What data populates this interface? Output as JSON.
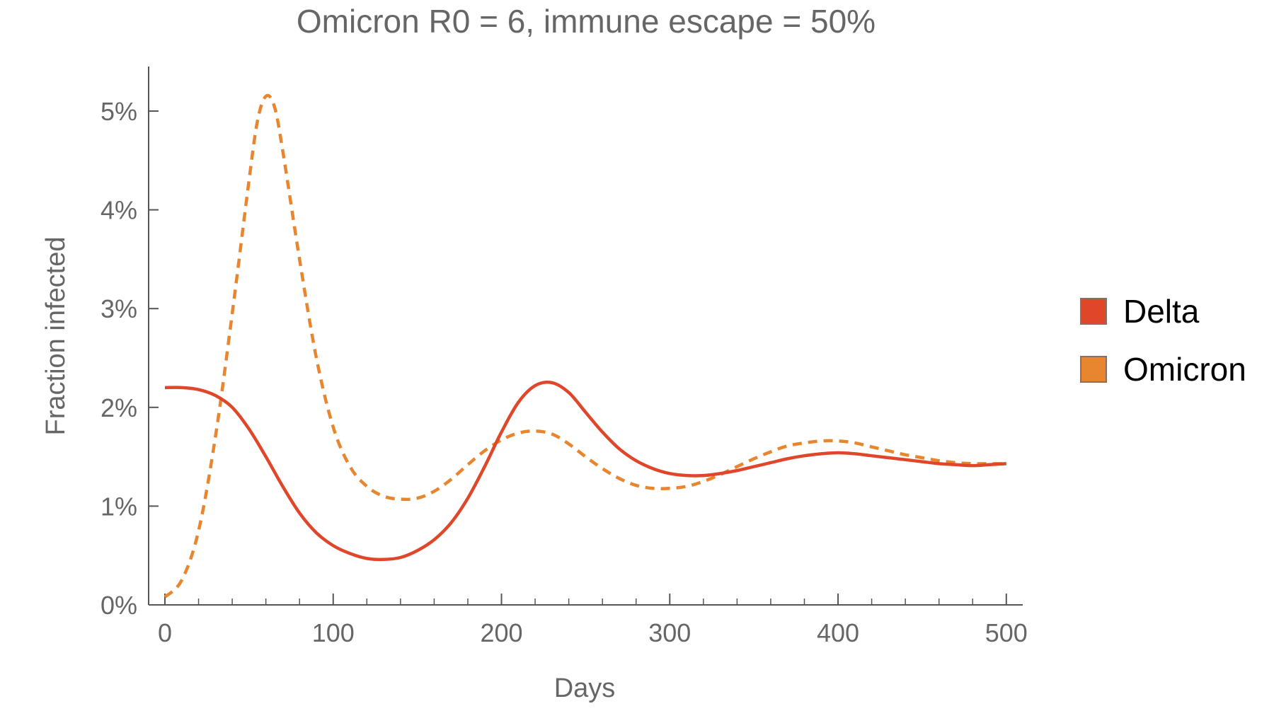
{
  "chart_data": {
    "type": "line",
    "title": "Omicron R0 = 6, immune escape = 50%",
    "xlabel": "Days",
    "ylabel": "Fraction infected",
    "xlim": [
      -5,
      510
    ],
    "ylim": [
      0,
      5.5
    ],
    "x_ticks": [
      {
        "value": 0,
        "label": "0"
      },
      {
        "value": 100,
        "label": "100"
      },
      {
        "value": 200,
        "label": "200"
      },
      {
        "value": 300,
        "label": "300"
      },
      {
        "value": 400,
        "label": "400"
      },
      {
        "value": 500,
        "label": "500"
      }
    ],
    "x_minor_ticks": [
      20,
      40,
      60,
      80,
      120,
      140,
      160,
      180,
      220,
      240,
      260,
      280,
      320,
      340,
      360,
      380,
      420,
      440,
      460,
      480
    ],
    "y_ticks": [
      {
        "value": 0,
        "label": "0%"
      },
      {
        "value": 1,
        "label": "1%"
      },
      {
        "value": 2,
        "label": "2%"
      },
      {
        "value": 3,
        "label": "3%"
      },
      {
        "value": 4,
        "label": "4%"
      },
      {
        "value": 5,
        "label": "5%"
      }
    ],
    "grid": false,
    "legend_position": "right",
    "series": [
      {
        "name": "Delta",
        "color": "#e0462a",
        "dash": "solid",
        "x": [
          0,
          10,
          20,
          30,
          40,
          50,
          60,
          70,
          80,
          90,
          100,
          110,
          120,
          130,
          140,
          150,
          160,
          170,
          180,
          190,
          200,
          210,
          220,
          230,
          240,
          250,
          260,
          270,
          280,
          290,
          300,
          310,
          320,
          330,
          340,
          350,
          360,
          370,
          380,
          390,
          400,
          410,
          420,
          430,
          440,
          450,
          460,
          470,
          480,
          490,
          500
        ],
        "y": [
          2.2,
          2.2,
          2.18,
          2.12,
          2.0,
          1.78,
          1.5,
          1.2,
          0.93,
          0.73,
          0.6,
          0.52,
          0.47,
          0.46,
          0.48,
          0.55,
          0.66,
          0.83,
          1.08,
          1.4,
          1.75,
          2.05,
          2.22,
          2.25,
          2.15,
          1.95,
          1.75,
          1.58,
          1.46,
          1.38,
          1.33,
          1.31,
          1.31,
          1.33,
          1.36,
          1.4,
          1.44,
          1.48,
          1.51,
          1.53,
          1.54,
          1.53,
          1.51,
          1.49,
          1.47,
          1.45,
          1.43,
          1.42,
          1.41,
          1.42,
          1.43
        ]
      },
      {
        "name": "Omicron",
        "color": "#e8862f",
        "dash": "dashed",
        "x": [
          0,
          10,
          20,
          30,
          40,
          50,
          55,
          60,
          65,
          70,
          80,
          90,
          100,
          110,
          120,
          130,
          140,
          150,
          160,
          170,
          180,
          190,
          200,
          210,
          220,
          230,
          240,
          250,
          260,
          270,
          280,
          290,
          300,
          310,
          320,
          330,
          340,
          350,
          360,
          370,
          380,
          390,
          400,
          410,
          420,
          430,
          440,
          450,
          460,
          470,
          480,
          490,
          500
        ],
        "y": [
          0.08,
          0.25,
          0.75,
          1.7,
          2.95,
          4.3,
          4.9,
          5.15,
          5.05,
          4.6,
          3.5,
          2.5,
          1.8,
          1.4,
          1.2,
          1.1,
          1.07,
          1.08,
          1.15,
          1.27,
          1.42,
          1.56,
          1.67,
          1.74,
          1.76,
          1.73,
          1.63,
          1.5,
          1.38,
          1.28,
          1.21,
          1.18,
          1.18,
          1.2,
          1.25,
          1.32,
          1.4,
          1.48,
          1.55,
          1.61,
          1.64,
          1.66,
          1.66,
          1.64,
          1.6,
          1.56,
          1.52,
          1.49,
          1.46,
          1.44,
          1.43,
          1.43,
          1.43
        ]
      }
    ]
  }
}
